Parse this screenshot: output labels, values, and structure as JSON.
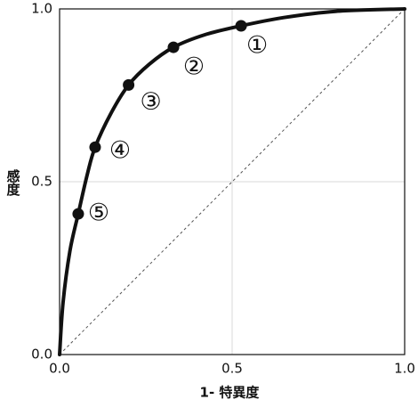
{
  "chart_data": {
    "type": "line",
    "x_label": "1- 特異度",
    "y_label": "感度",
    "xlim": [
      0,
      1
    ],
    "ylim": [
      0,
      1
    ],
    "xticks": [
      {
        "value": 0,
        "label": "0.0"
      },
      {
        "value": 0.5,
        "label": "0.5"
      },
      {
        "value": 1,
        "label": "1.0"
      }
    ],
    "yticks": [
      {
        "value": 0,
        "label": "0.0"
      },
      {
        "value": 0.5,
        "label": "0.5"
      },
      {
        "value": 1,
        "label": "1.0"
      }
    ],
    "grid": true,
    "curve": {
      "color": "#111111",
      "x": [
        0,
        0.01,
        0.03,
        0.054,
        0.08,
        0.103,
        0.15,
        0.2,
        0.26,
        0.33,
        0.42,
        0.526,
        0.65,
        0.8,
        1
      ],
      "y": [
        0,
        0.15,
        0.3,
        0.407,
        0.52,
        0.6,
        0.7,
        0.78,
        0.84,
        0.889,
        0.925,
        0.951,
        0.975,
        0.993,
        1
      ]
    },
    "points": {
      "color": "#111111",
      "x": [
        0.526,
        0.33,
        0.2,
        0.103,
        0.054
      ],
      "y": [
        0.951,
        0.889,
        0.78,
        0.6,
        0.407
      ],
      "labels": [
        "①",
        "②",
        "③",
        "④",
        "⑤"
      ]
    },
    "reference_line": {
      "x": [
        0,
        1
      ],
      "y": [
        0,
        1
      ]
    }
  }
}
